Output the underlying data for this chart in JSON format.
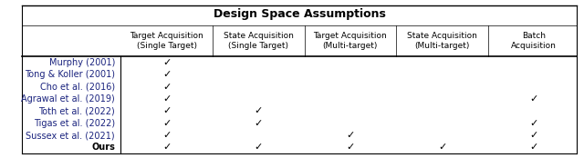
{
  "title": "Design Space Assumptions",
  "col_headers": [
    "Target Acquisition\n(Single Target)",
    "State Acquisition\n(Single Target)",
    "Target Acquisition\n(Multi-target)",
    "State Acquisition\n(Multi-target)",
    "Batch\nAcquisition"
  ],
  "row_labels": [
    "Murphy (2001)",
    "Tong & Koller (2001)",
    "Cho et al. (2016)",
    "Agrawal et al. (2019)",
    "Toth et al. (2022)",
    "Tigas et al. (2022)",
    "Sussex et al. (2021)",
    "Ours"
  ],
  "row_bold": [
    false,
    false,
    false,
    false,
    false,
    false,
    false,
    true
  ],
  "row_color": [
    "#1a237e",
    "#1a237e",
    "#1a237e",
    "#1a237e",
    "#1a237e",
    "#1a237e",
    "#1a237e",
    "#000000"
  ],
  "checks": [
    [
      1,
      0,
      0,
      0,
      0
    ],
    [
      1,
      0,
      0,
      0,
      0
    ],
    [
      1,
      0,
      0,
      0,
      0
    ],
    [
      1,
      0,
      0,
      0,
      1
    ],
    [
      1,
      1,
      0,
      0,
      0
    ],
    [
      1,
      1,
      0,
      0,
      1
    ],
    [
      1,
      0,
      1,
      0,
      1
    ],
    [
      1,
      1,
      1,
      1,
      1
    ]
  ],
  "background_color": "#ffffff",
  "figsize": [
    6.4,
    1.74
  ],
  "dpi": 100
}
